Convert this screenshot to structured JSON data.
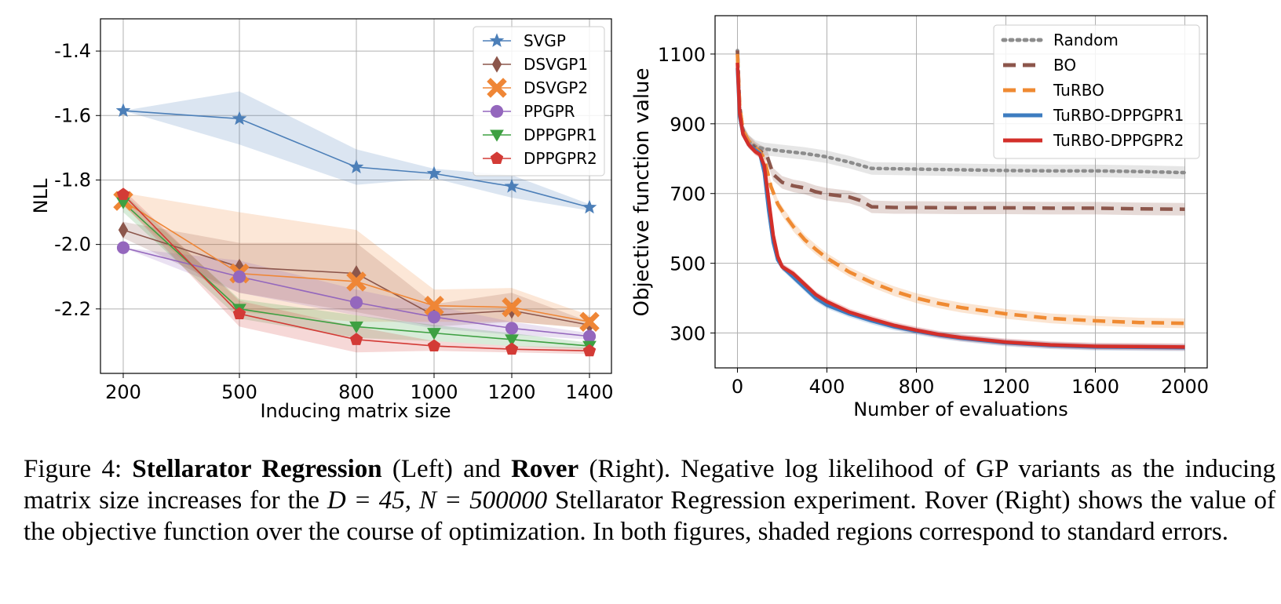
{
  "chart_data": [
    {
      "type": "line",
      "title": "",
      "xlabel": "Inducing matrix size",
      "ylabel": "NLL",
      "x": [
        200,
        500,
        800,
        1000,
        1200,
        1400
      ],
      "x_tick_labels": [
        "200",
        "500",
        "800",
        "1000",
        "1200",
        "1400"
      ],
      "y_tick_values": [
        -1.4,
        -1.6,
        -1.8,
        -2.0,
        -2.2
      ],
      "y_tick_labels": [
        "-1.4",
        "-1.6",
        "-1.8",
        "-2.0",
        "-2.2"
      ],
      "ylim": [
        -2.4,
        -1.3
      ],
      "grid": true,
      "legend": "top-right",
      "series": [
        {
          "name": "SVGP",
          "color": "#4c7fb8",
          "marker": "star",
          "values": [
            -1.585,
            -1.61,
            -1.76,
            -1.78,
            -1.82,
            -1.885
          ],
          "lower": [
            -1.585,
            -1.69,
            -1.815,
            -1.795,
            -1.855,
            -1.895
          ],
          "upper": [
            -1.585,
            -1.525,
            -1.705,
            -1.765,
            -1.785,
            -1.875
          ]
        },
        {
          "name": "DSVGP1",
          "color": "#8c564b",
          "marker": "diamond",
          "values": [
            -1.955,
            -2.07,
            -2.09,
            -2.22,
            -2.205,
            -2.25
          ],
          "lower": [
            -1.98,
            -2.15,
            -2.21,
            -2.255,
            -2.24,
            -2.26
          ],
          "upper": [
            -1.93,
            -1.995,
            -1.995,
            -2.185,
            -2.15,
            -2.24
          ]
        },
        {
          "name": "DSVGP2",
          "color": "#ef8636",
          "marker": "x",
          "values": [
            -1.865,
            -2.09,
            -2.115,
            -2.19,
            -2.195,
            -2.24
          ],
          "lower": [
            -1.88,
            -2.21,
            -2.24,
            -2.24,
            -2.24,
            -2.26
          ],
          "upper": [
            -1.84,
            -1.9,
            -1.955,
            -2.14,
            -2.135,
            -2.22
          ]
        },
        {
          "name": "PPGPR",
          "color": "#9467bd",
          "marker": "circle",
          "values": [
            -2.01,
            -2.1,
            -2.18,
            -2.225,
            -2.26,
            -2.285
          ],
          "lower": [
            -2.01,
            -2.15,
            -2.22,
            -2.26,
            -2.28,
            -2.295
          ],
          "upper": [
            -2.01,
            -2.05,
            -2.14,
            -2.19,
            -2.24,
            -2.275
          ]
        },
        {
          "name": "DPPGPR1",
          "color": "#3ea042",
          "marker": "triangle-down",
          "values": [
            -1.87,
            -2.2,
            -2.255,
            -2.275,
            -2.295,
            -2.315
          ],
          "lower": [
            -1.9,
            -2.23,
            -2.29,
            -2.3,
            -2.315,
            -2.325
          ],
          "upper": [
            -1.84,
            -2.17,
            -2.22,
            -2.25,
            -2.275,
            -2.305
          ]
        },
        {
          "name": "DPPGPR2",
          "color": "#d33b36",
          "marker": "pentagon",
          "values": [
            -1.845,
            -2.215,
            -2.295,
            -2.315,
            -2.325,
            -2.33
          ],
          "lower": [
            -1.875,
            -2.255,
            -2.335,
            -2.33,
            -2.335,
            -2.34
          ],
          "upper": [
            -1.83,
            -2.175,
            -2.255,
            -2.3,
            -2.315,
            -2.32
          ]
        }
      ]
    },
    {
      "type": "line",
      "title": "",
      "xlabel": "Number of evaluations",
      "ylabel": "Objective function value",
      "x_tick_values": [
        0,
        400,
        800,
        1200,
        1600,
        2000
      ],
      "x_tick_labels": [
        "0",
        "400",
        "800",
        "1200",
        "1600",
        "2000"
      ],
      "y_tick_values": [
        300,
        500,
        700,
        900,
        1100
      ],
      "y_tick_labels": [
        "300",
        "500",
        "700",
        "900",
        "1100"
      ],
      "xlim": [
        -100,
        2100
      ],
      "ylim": [
        200,
        1210
      ],
      "grid": true,
      "legend": "top-right",
      "series": [
        {
          "name": "Random",
          "color": "#8c8c8c",
          "style": "dotted",
          "x": [
            0,
            10,
            25,
            50,
            80,
            120,
            200,
            300,
            400,
            500,
            600,
            800,
            1000,
            1200,
            1400,
            1600,
            1800,
            2000
          ],
          "values": [
            1110,
            930,
            880,
            850,
            835,
            828,
            822,
            815,
            805,
            790,
            772,
            770,
            768,
            766,
            765,
            765,
            763,
            760
          ],
          "band": 18
        },
        {
          "name": "BO",
          "color": "#8c564b",
          "style": "dashed",
          "x": [
            0,
            10,
            25,
            50,
            80,
            100,
            130,
            160,
            200,
            250,
            300,
            350,
            400,
            500,
            550,
            600,
            700,
            800,
            1000,
            1200,
            1400,
            1600,
            1800,
            2000
          ],
          "values": [
            1110,
            950,
            880,
            850,
            830,
            822,
            812,
            755,
            732,
            722,
            716,
            705,
            698,
            690,
            680,
            662,
            660,
            660,
            659,
            659,
            658,
            658,
            656,
            655
          ],
          "band": 18
        },
        {
          "name": "TuRBO",
          "color": "#ef8a32",
          "style": "dashed",
          "x": [
            0,
            10,
            25,
            50,
            80,
            100,
            120,
            150,
            180,
            210,
            250,
            300,
            350,
            400,
            500,
            600,
            700,
            800,
            900,
            1000,
            1200,
            1400,
            1600,
            1800,
            2000
          ],
          "values": [
            1100,
            950,
            880,
            850,
            830,
            820,
            800,
            720,
            670,
            640,
            605,
            568,
            540,
            515,
            475,
            445,
            420,
            400,
            385,
            373,
            355,
            342,
            335,
            330,
            328
          ],
          "band": 14
        },
        {
          "name": "TuRBO-DPPGPR1",
          "color": "#3d7cc0",
          "style": "solid",
          "x": [
            0,
            10,
            25,
            50,
            80,
            100,
            120,
            140,
            160,
            180,
            200,
            250,
            300,
            350,
            400,
            500,
            600,
            700,
            800,
            900,
            1000,
            1200,
            1400,
            1600,
            1800,
            2000
          ],
          "values": [
            1060,
            920,
            870,
            840,
            825,
            815,
            760,
            650,
            560,
            510,
            490,
            460,
            430,
            400,
            380,
            355,
            335,
            318,
            305,
            294,
            285,
            272,
            264,
            260,
            259,
            258
          ],
          "band": 10
        },
        {
          "name": "TuRBO-DPPGPR2",
          "color": "#d32f2a",
          "style": "solid",
          "x": [
            0,
            10,
            25,
            50,
            80,
            100,
            120,
            140,
            160,
            180,
            200,
            250,
            300,
            350,
            400,
            500,
            600,
            700,
            800,
            900,
            1000,
            1200,
            1400,
            1600,
            1800,
            2000
          ],
          "values": [
            1075,
            930,
            870,
            840,
            820,
            812,
            780,
            680,
            580,
            520,
            490,
            470,
            440,
            410,
            390,
            360,
            340,
            322,
            308,
            296,
            287,
            274,
            266,
            262,
            261,
            260
          ],
          "band": 10
        }
      ]
    }
  ],
  "caption": {
    "prefix": "Figure 4: ",
    "bold1": "Stellarator Regression",
    "text1": " (Left) and ",
    "bold2": "Rover",
    "text2": " (Right). Negative log likelihood of GP variants as the inducing matrix size increases for the ",
    "math": "D = 45, N = 500000",
    "text3": " Stellarator Regression experiment. Rover (Right) shows the value of the objective function over the course of optimization. In both figures, shaded regions correspond to standard errors."
  }
}
